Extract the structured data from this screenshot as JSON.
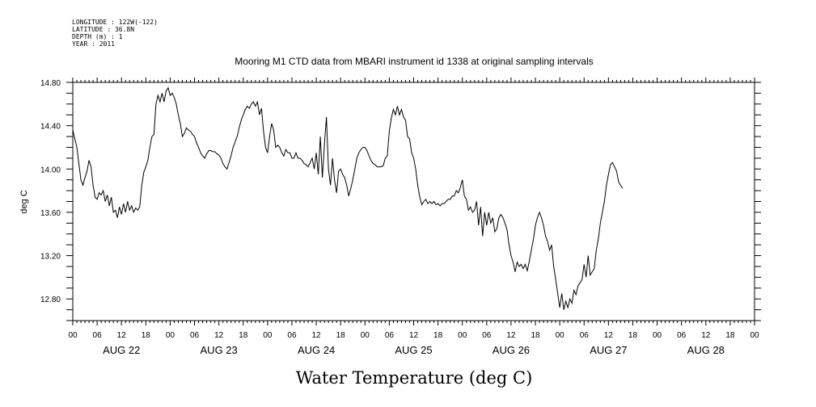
{
  "metadata": {
    "longitude": "LONGITUDE : 122W(-122)",
    "latitude": "LATITUDE : 36.8N",
    "depth": "DEPTH (m) : 1",
    "year": "YEAR : 2011"
  },
  "chart_data": {
    "type": "line",
    "title": "Mooring M1 CTD data from MBARI instrument id 1338 at original sampling intervals",
    "xlabel": "Water Temperature (deg C)",
    "ylabel": "deg C",
    "xlim": [
      0,
      168
    ],
    "ylim": [
      12.6,
      14.8
    ],
    "y_ticks": [
      "14.80",
      "14.40",
      "14.00",
      "13.60",
      "13.20",
      "12.80"
    ],
    "y_tick_values": [
      14.8,
      14.4,
      14.0,
      13.6,
      13.2,
      12.8
    ],
    "hour_labels": [
      "00",
      "06",
      "12",
      "18",
      "00",
      "06",
      "12",
      "18",
      "00",
      "06",
      "12",
      "18",
      "00",
      "06",
      "12",
      "18",
      "00",
      "06",
      "12",
      "18",
      "00",
      "06",
      "12",
      "18",
      "00",
      "06",
      "12",
      "18",
      "00"
    ],
    "hour_label_values": [
      0,
      6,
      12,
      18,
      24,
      30,
      36,
      42,
      48,
      54,
      60,
      66,
      72,
      78,
      84,
      90,
      96,
      102,
      108,
      114,
      120,
      126,
      132,
      138,
      144,
      150,
      156,
      162,
      168
    ],
    "day_labels": [
      "AUG 22",
      "AUG 23",
      "AUG 24",
      "AUG 25",
      "AUG 26",
      "AUG 27",
      "AUG 28"
    ],
    "day_label_centers": [
      12,
      36,
      60,
      84,
      108,
      132,
      156
    ],
    "series": [
      {
        "values": [
          [
            0,
            14.36
          ],
          [
            0.5,
            14.28
          ],
          [
            1,
            14.2
          ],
          [
            1.5,
            14.05
          ],
          [
            2,
            13.9
          ],
          [
            2.5,
            13.85
          ],
          [
            3,
            13.92
          ],
          [
            3.5,
            13.98
          ],
          [
            4,
            14.08
          ],
          [
            4.5,
            14.02
          ],
          [
            5,
            13.85
          ],
          [
            5.5,
            13.74
          ],
          [
            6,
            13.72
          ],
          [
            6.5,
            13.78
          ],
          [
            7,
            13.76
          ],
          [
            7.5,
            13.8
          ],
          [
            8,
            13.7
          ],
          [
            8.5,
            13.76
          ],
          [
            9,
            13.66
          ],
          [
            9.5,
            13.74
          ],
          [
            10,
            13.6
          ],
          [
            10.5,
            13.62
          ],
          [
            11,
            13.55
          ],
          [
            11.5,
            13.65
          ],
          [
            12,
            13.58
          ],
          [
            12.5,
            13.68
          ],
          [
            13,
            13.6
          ],
          [
            13.5,
            13.7
          ],
          [
            14,
            13.62
          ],
          [
            14.5,
            13.66
          ],
          [
            15,
            13.6
          ],
          [
            15.5,
            13.64
          ],
          [
            16,
            13.62
          ],
          [
            16.5,
            13.65
          ],
          [
            17,
            13.85
          ],
          [
            17.5,
            13.97
          ],
          [
            18,
            14.02
          ],
          [
            18.5,
            14.08
          ],
          [
            19,
            14.2
          ],
          [
            19.5,
            14.3
          ],
          [
            20,
            14.32
          ],
          [
            20.5,
            14.6
          ],
          [
            21,
            14.68
          ],
          [
            21.5,
            14.62
          ],
          [
            22,
            14.7
          ],
          [
            22.5,
            14.62
          ],
          [
            23,
            14.72
          ],
          [
            23.5,
            14.75
          ],
          [
            24,
            14.68
          ],
          [
            24.5,
            14.7
          ],
          [
            25,
            14.66
          ],
          [
            25.5,
            14.6
          ],
          [
            26,
            14.5
          ],
          [
            26.5,
            14.42
          ],
          [
            27,
            14.3
          ],
          [
            27.5,
            14.33
          ],
          [
            28,
            14.38
          ],
          [
            28.5,
            14.36
          ],
          [
            29,
            14.35
          ],
          [
            29.5,
            14.32
          ],
          [
            30,
            14.3
          ],
          [
            30.5,
            14.24
          ],
          [
            31,
            14.2
          ],
          [
            31.5,
            14.15
          ],
          [
            32,
            14.12
          ],
          [
            32.5,
            14.1
          ],
          [
            33,
            14.14
          ],
          [
            33.5,
            14.17
          ],
          [
            34,
            14.17
          ],
          [
            34.5,
            14.16
          ],
          [
            35,
            14.16
          ],
          [
            35.5,
            14.14
          ],
          [
            36,
            14.13
          ],
          [
            36.5,
            14.1
          ],
          [
            37,
            14.05
          ],
          [
            37.5,
            14.02
          ],
          [
            38,
            14.0
          ],
          [
            38.5,
            14.06
          ],
          [
            39,
            14.12
          ],
          [
            39.5,
            14.2
          ],
          [
            40,
            14.25
          ],
          [
            40.5,
            14.3
          ],
          [
            41,
            14.38
          ],
          [
            41.5,
            14.45
          ],
          [
            42,
            14.5
          ],
          [
            42.5,
            14.55
          ],
          [
            43,
            14.58
          ],
          [
            43.5,
            14.56
          ],
          [
            44,
            14.6
          ],
          [
            44.5,
            14.62
          ],
          [
            45,
            14.58
          ],
          [
            45.5,
            14.62
          ],
          [
            46,
            14.5
          ],
          [
            46.5,
            14.56
          ],
          [
            47,
            14.35
          ],
          [
            47.5,
            14.2
          ],
          [
            48,
            14.15
          ],
          [
            48.5,
            14.3
          ],
          [
            49,
            14.42
          ],
          [
            49.5,
            14.36
          ],
          [
            50,
            14.2
          ],
          [
            50.5,
            14.22
          ],
          [
            51,
            14.2
          ],
          [
            51.5,
            14.15
          ],
          [
            52,
            14.12
          ],
          [
            52.5,
            14.18
          ],
          [
            53,
            14.15
          ],
          [
            53.5,
            14.15
          ],
          [
            54,
            14.1
          ],
          [
            54.5,
            14.1
          ],
          [
            55,
            14.15
          ],
          [
            55.5,
            14.1
          ],
          [
            56,
            14.1
          ],
          [
            56.5,
            14.08
          ],
          [
            57,
            14.05
          ],
          [
            57.5,
            14.04
          ],
          [
            58,
            14.02
          ],
          [
            58.5,
            14.06
          ],
          [
            59,
            14.1
          ],
          [
            59.5,
            14.0
          ],
          [
            60,
            14.15
          ],
          [
            60.5,
            13.95
          ],
          [
            61,
            14.3
          ],
          [
            61.5,
            13.92
          ],
          [
            62,
            14.22
          ],
          [
            62.5,
            14.48
          ],
          [
            63,
            14.0
          ],
          [
            63.5,
            13.85
          ],
          [
            64,
            14.1
          ],
          [
            64.5,
            13.9
          ],
          [
            65,
            13.78
          ],
          [
            65.5,
            13.98
          ],
          [
            66,
            14.0
          ],
          [
            66.5,
            13.95
          ],
          [
            67,
            13.92
          ],
          [
            67.5,
            13.85
          ],
          [
            68,
            13.75
          ],
          [
            68.5,
            13.82
          ],
          [
            69,
            13.9
          ],
          [
            69.5,
            14.0
          ],
          [
            70,
            14.1
          ],
          [
            70.5,
            14.15
          ],
          [
            71,
            14.18
          ],
          [
            71.5,
            14.2
          ],
          [
            72,
            14.2
          ],
          [
            72.5,
            14.17
          ],
          [
            73,
            14.12
          ],
          [
            73.5,
            14.08
          ],
          [
            74,
            14.05
          ],
          [
            74.5,
            14.04
          ],
          [
            75,
            14.02
          ],
          [
            75.5,
            14.02
          ],
          [
            76,
            14.02
          ],
          [
            76.5,
            14.03
          ],
          [
            77,
            14.1
          ],
          [
            77.5,
            14.12
          ],
          [
            78,
            14.35
          ],
          [
            78.5,
            14.47
          ],
          [
            79,
            14.55
          ],
          [
            79.5,
            14.5
          ],
          [
            80,
            14.58
          ],
          [
            80.5,
            14.5
          ],
          [
            81,
            14.55
          ],
          [
            81.5,
            14.48
          ],
          [
            82,
            14.45
          ],
          [
            82.5,
            14.3
          ],
          [
            83,
            14.28
          ],
          [
            83.5,
            14.15
          ],
          [
            84,
            14.1
          ],
          [
            84.5,
            14.0
          ],
          [
            85,
            13.85
          ],
          [
            85.5,
            13.74
          ],
          [
            86,
            13.67
          ],
          [
            86.5,
            13.7
          ],
          [
            87,
            13.72
          ],
          [
            87.5,
            13.68
          ],
          [
            88,
            13.7
          ],
          [
            88.5,
            13.68
          ],
          [
            89,
            13.7
          ],
          [
            89.5,
            13.67
          ],
          [
            90,
            13.68
          ],
          [
            90.5,
            13.66
          ],
          [
            91,
            13.68
          ],
          [
            91.5,
            13.68
          ],
          [
            92,
            13.7
          ],
          [
            92.5,
            13.72
          ],
          [
            93,
            13.72
          ],
          [
            93.5,
            13.75
          ],
          [
            94,
            13.75
          ],
          [
            94.5,
            13.8
          ],
          [
            95,
            13.78
          ],
          [
            95.5,
            13.83
          ],
          [
            96,
            13.9
          ],
          [
            96.5,
            13.75
          ],
          [
            97,
            13.72
          ],
          [
            97.5,
            13.62
          ],
          [
            98,
            13.65
          ],
          [
            98.5,
            13.6
          ],
          [
            99,
            13.62
          ],
          [
            99.5,
            13.7
          ],
          [
            100,
            13.48
          ],
          [
            100.5,
            13.65
          ],
          [
            101,
            13.38
          ],
          [
            101.5,
            13.6
          ],
          [
            102,
            13.48
          ],
          [
            102.5,
            13.6
          ],
          [
            103,
            13.5
          ],
          [
            103.5,
            13.55
          ],
          [
            104,
            13.42
          ],
          [
            104.5,
            13.45
          ],
          [
            105,
            13.55
          ],
          [
            105.5,
            13.58
          ],
          [
            106,
            13.55
          ],
          [
            106.5,
            13.5
          ],
          [
            107,
            13.44
          ],
          [
            107.5,
            13.3
          ],
          [
            108,
            13.2
          ],
          [
            108.5,
            13.14
          ],
          [
            109,
            13.05
          ],
          [
            109.5,
            13.14
          ],
          [
            110,
            13.1
          ],
          [
            110.5,
            13.12
          ],
          [
            111,
            13.08
          ],
          [
            111.5,
            13.12
          ],
          [
            112,
            13.06
          ],
          [
            112.5,
            13.15
          ],
          [
            113,
            13.25
          ],
          [
            113.5,
            13.35
          ],
          [
            114,
            13.48
          ],
          [
            114.5,
            13.55
          ],
          [
            115,
            13.6
          ],
          [
            115.5,
            13.55
          ],
          [
            116,
            13.48
          ],
          [
            116.5,
            13.38
          ],
          [
            117,
            13.33
          ],
          [
            117.5,
            13.25
          ],
          [
            118,
            13.3
          ],
          [
            118.5,
            13.1
          ],
          [
            119,
            12.98
          ],
          [
            119.5,
            12.85
          ],
          [
            120,
            12.72
          ],
          [
            120.5,
            12.85
          ],
          [
            121,
            12.7
          ],
          [
            121.5,
            12.78
          ],
          [
            122,
            12.72
          ],
          [
            122.5,
            12.8
          ],
          [
            123,
            12.76
          ],
          [
            123.5,
            12.88
          ],
          [
            124,
            12.84
          ],
          [
            124.5,
            12.92
          ],
          [
            125,
            12.95
          ],
          [
            125.5,
            12.98
          ],
          [
            126,
            13.12
          ],
          [
            126.5,
            13.0
          ],
          [
            127,
            13.2
          ],
          [
            127.5,
            13.02
          ],
          [
            128,
            13.05
          ],
          [
            128.5,
            13.08
          ],
          [
            129,
            13.25
          ],
          [
            129.5,
            13.35
          ],
          [
            130,
            13.5
          ],
          [
            130.5,
            13.6
          ],
          [
            131,
            13.7
          ],
          [
            131.5,
            13.85
          ],
          [
            132,
            13.95
          ],
          [
            132.5,
            14.04
          ],
          [
            133,
            14.06
          ],
          [
            133.5,
            14.02
          ],
          [
            134,
            13.98
          ],
          [
            134.5,
            13.88
          ],
          [
            135,
            13.85
          ],
          [
            135.5,
            13.82
          ]
        ]
      }
    ]
  }
}
